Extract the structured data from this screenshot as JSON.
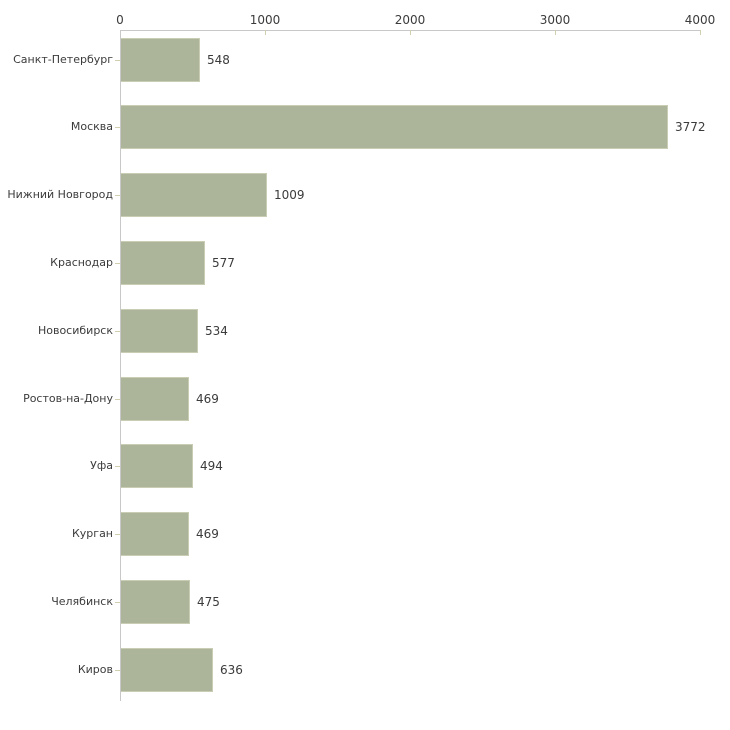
{
  "chart_data": {
    "type": "bar",
    "orientation": "horizontal",
    "title": "",
    "xlabel": "",
    "ylabel": "",
    "categories": [
      "Санкт-Петербург",
      "Москва",
      "Нижний Новгород",
      "Краснодар",
      "Новосибирск",
      "Ростов-на-Дону",
      "Уфа",
      "Курган",
      "Челябинск",
      "Киров"
    ],
    "values": [
      548,
      3772,
      1009,
      577,
      534,
      469,
      494,
      469,
      475,
      636
    ],
    "value_labels": [
      "548",
      "3772",
      "1009",
      "577",
      "534",
      "469",
      "494",
      "469",
      "475",
      "636"
    ],
    "x_axis": {
      "position": "top",
      "min": 0,
      "max": 4000,
      "ticks": [
        0,
        1000,
        2000,
        3000,
        4000
      ],
      "tick_labels": [
        "0",
        "1000",
        "2000",
        "3000",
        "4000"
      ]
    },
    "grid": false,
    "legend": false,
    "colors": {
      "bar_fill": "#acb499",
      "bar_border": "#c9cdb3",
      "axis_line": "#c8c8c8",
      "tick_mark": "#d2cfae",
      "text": "#3b3b3b"
    }
  }
}
